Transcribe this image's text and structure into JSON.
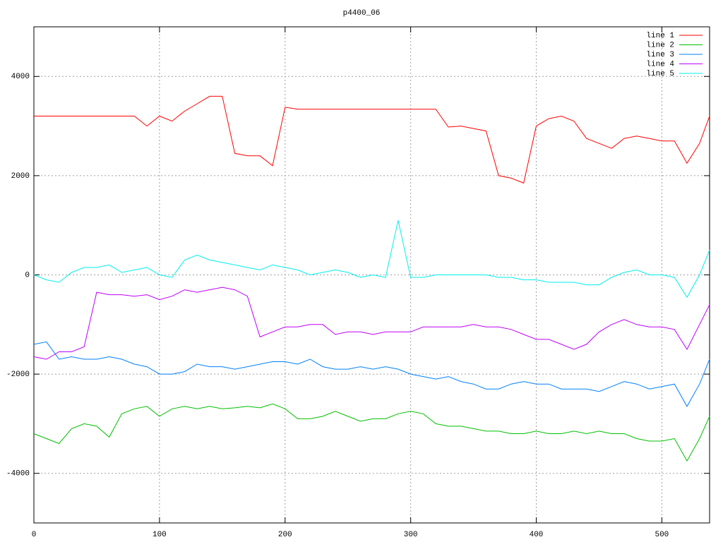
{
  "chart_data": {
    "type": "line",
    "title": "p4400_06",
    "x": [
      0,
      10,
      20,
      30,
      40,
      50,
      60,
      70,
      80,
      90,
      100,
      110,
      120,
      130,
      140,
      150,
      160,
      170,
      180,
      190,
      200,
      210,
      220,
      230,
      240,
      250,
      260,
      270,
      280,
      290,
      300,
      310,
      320,
      330,
      340,
      350,
      360,
      370,
      380,
      390,
      400,
      410,
      420,
      430,
      440,
      450,
      460,
      470,
      480,
      490,
      500,
      510,
      520,
      530,
      538
    ],
    "series": [
      {
        "name": "line 1",
        "color": "#ff0000",
        "values": [
          3200,
          3200,
          3200,
          3200,
          3200,
          3200,
          3200,
          3200,
          3200,
          3000,
          3200,
          3100,
          3300,
          3450,
          3600,
          3600,
          2450,
          2400,
          2400,
          2200,
          3380,
          3340,
          3340,
          3340,
          3340,
          3340,
          3340,
          3340,
          3340,
          3340,
          3340,
          3340,
          3340,
          2980,
          3000,
          2950,
          2900,
          2000,
          1950,
          1850,
          3000,
          3150,
          3200,
          3100,
          2750,
          2650,
          2550,
          2750,
          2800,
          2750,
          2700,
          2700,
          2250,
          2650,
          3200
        ]
      },
      {
        "name": "line 2",
        "color": "#00c000",
        "values": [
          -3200,
          -3300,
          -3400,
          -3100,
          -3000,
          -3050,
          -3270,
          -2800,
          -2700,
          -2650,
          -2850,
          -2700,
          -2650,
          -2700,
          -2650,
          -2700,
          -2680,
          -2650,
          -2680,
          -2600,
          -2700,
          -2900,
          -2900,
          -2850,
          -2750,
          -2850,
          -2950,
          -2900,
          -2900,
          -2800,
          -2750,
          -2800,
          -3000,
          -3050,
          -3050,
          -3100,
          -3150,
          -3150,
          -3200,
          -3200,
          -3150,
          -3200,
          -3200,
          -3150,
          -3200,
          -3150,
          -3200,
          -3200,
          -3300,
          -3350,
          -3350,
          -3300,
          -3750,
          -3300,
          -2850
        ]
      },
      {
        "name": "line 3",
        "color": "#0080ff",
        "values": [
          -1400,
          -1350,
          -1700,
          -1650,
          -1700,
          -1700,
          -1650,
          -1700,
          -1800,
          -1850,
          -2000,
          -2000,
          -1950,
          -1800,
          -1850,
          -1850,
          -1900,
          -1850,
          -1800,
          -1750,
          -1750,
          -1800,
          -1700,
          -1850,
          -1900,
          -1900,
          -1850,
          -1900,
          -1850,
          -1900,
          -2000,
          -2050,
          -2100,
          -2050,
          -2150,
          -2200,
          -2300,
          -2300,
          -2200,
          -2150,
          -2200,
          -2200,
          -2300,
          -2300,
          -2300,
          -2350,
          -2250,
          -2150,
          -2200,
          -2300,
          -2250,
          -2200,
          -2650,
          -2200,
          -1700
        ]
      },
      {
        "name": "line 4",
        "color": "#c000ff",
        "values": [
          -1650,
          -1700,
          -1550,
          -1550,
          -1450,
          -350,
          -400,
          -400,
          -430,
          -400,
          -500,
          -430,
          -300,
          -350,
          -300,
          -250,
          -300,
          -430,
          -1250,
          -1150,
          -1050,
          -1050,
          -1000,
          -1000,
          -1200,
          -1150,
          -1150,
          -1200,
          -1150,
          -1150,
          -1150,
          -1050,
          -1050,
          -1050,
          -1050,
          -1000,
          -1050,
          -1050,
          -1100,
          -1200,
          -1300,
          -1300,
          -1400,
          -1500,
          -1400,
          -1150,
          -1000,
          -900,
          -1000,
          -1050,
          -1050,
          -1100,
          -1500,
          -1000,
          -600
        ]
      },
      {
        "name": "line 5",
        "color": "#00eeee",
        "values": [
          0,
          -100,
          -150,
          50,
          150,
          150,
          200,
          50,
          100,
          150,
          0,
          -50,
          300,
          400,
          300,
          250,
          200,
          150,
          100,
          200,
          150,
          100,
          0,
          50,
          100,
          50,
          -50,
          0,
          -50,
          1100,
          -50,
          -50,
          0,
          0,
          0,
          0,
          0,
          -50,
          -50,
          -100,
          -100,
          -150,
          -150,
          -150,
          -200,
          -200,
          -50,
          50,
          100,
          0,
          0,
          -50,
          -450,
          0,
          500
        ]
      }
    ],
    "xlim": [
      0,
      538
    ],
    "ylim": [
      -5000,
      5000
    ],
    "xticks": [
      0,
      100,
      200,
      300,
      400,
      500
    ],
    "yticks": [
      -4000,
      -2000,
      0,
      2000,
      4000
    ],
    "grid": true,
    "legend": "top-right"
  }
}
